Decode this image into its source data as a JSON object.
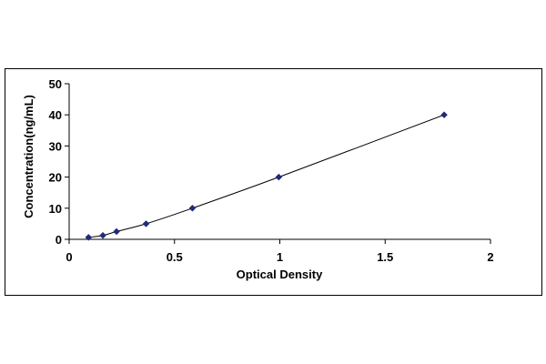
{
  "chart_data": {
    "type": "scatter",
    "title": "",
    "xlabel": "Optical Density",
    "ylabel": "Concentration(ng/mL)",
    "xlim": [
      0,
      2
    ],
    "ylim": [
      0,
      50
    ],
    "x_ticks": [
      0,
      0.5,
      1,
      1.5,
      2
    ],
    "x_tick_labels": [
      "0",
      "0.5",
      "1",
      "1.5",
      "2"
    ],
    "y_ticks": [
      0,
      10,
      20,
      30,
      40,
      50
    ],
    "y_tick_labels": [
      "0",
      "10",
      "20",
      "30",
      "40",
      "50"
    ],
    "grid": false,
    "legend": "none",
    "series": [
      {
        "marker": "diamond",
        "color": "#1f2a7a",
        "line_color": "#000000",
        "fit_line": true,
        "x": [
          0.092,
          0.16,
          0.225,
          0.365,
          0.585,
          0.995,
          1.78
        ],
        "y": [
          0.625,
          1.25,
          2.5,
          5,
          10,
          20,
          40
        ]
      }
    ]
  }
}
